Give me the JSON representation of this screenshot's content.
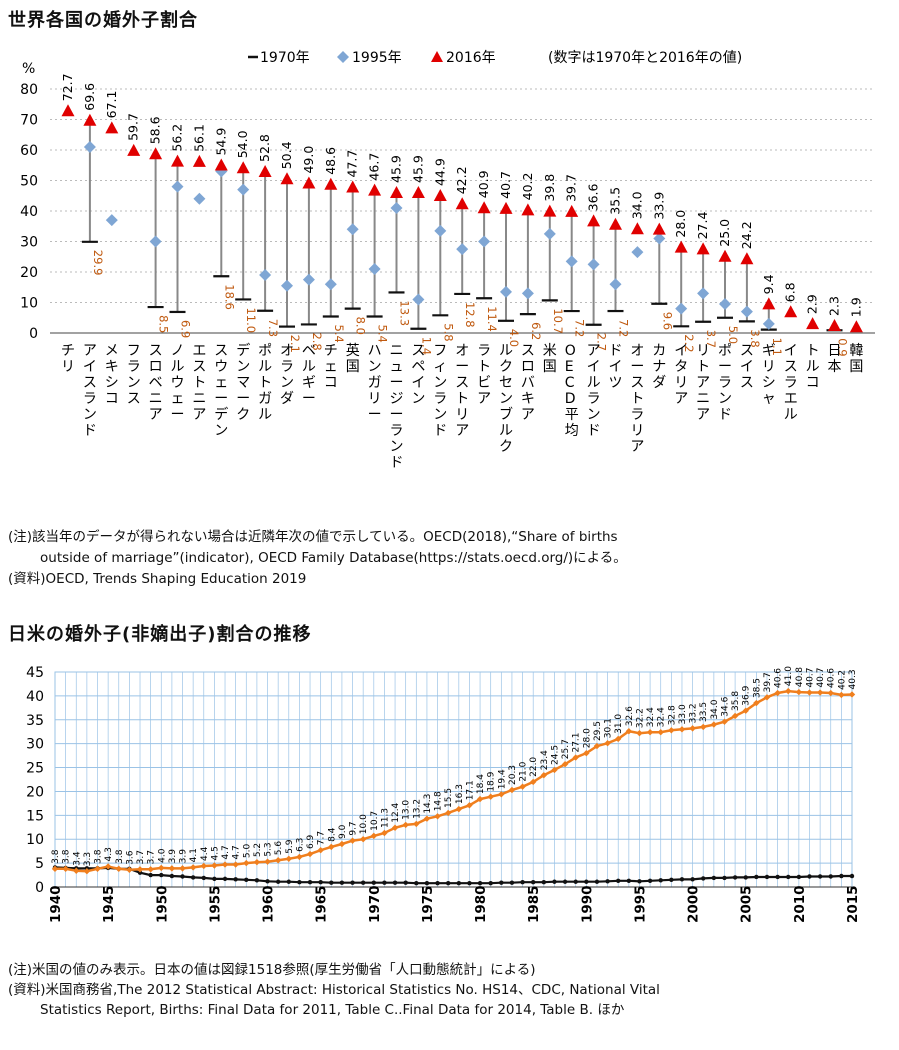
{
  "title1": "世界各国の婚外子割合",
  "title2": "日米の婚外子(非嫡出子)割合の推移",
  "legend": {
    "s1970": "1970年",
    "s1995": "1995年",
    "s2016": "2016年",
    "note": "(数字は1970年と2016年の値)"
  },
  "notes": {
    "n1": "(注)該当年のデータが得られない場合は近隣年次の値で示している。OECD(2018),“Share of births",
    "n2": "outside of marriage”(indicator), OECD Family Database(https://stats.oecd.org/)による。",
    "n3": "(資料)OECD, Trends Shaping Education 2019",
    "n4": "(注)米国の値のみ表示。日本の値は図録1518参照(厚生労働省「人口動態統計」による)",
    "n5": "(資料)米国商務省,The 2012 Statistical Abstract: Historical Statistics No. HS14、CDC, National Vital",
    "n6": "Statistics Report, Births: Final Data for 2011, Table C..Final Data for 2014, Table B. ほか"
  },
  "colors": {
    "s1970": "#111111",
    "s1995": "#7fa6d4",
    "s2016": "#e00000",
    "label1970": "#c05a10",
    "orange": "#f07f1e",
    "grid": "#9bc3e6"
  },
  "chart_data": [
    {
      "type": "scatter",
      "title": "世界各国の婚外子割合",
      "ylabel": "%",
      "ylim": [
        0,
        80
      ],
      "yticks": [
        0,
        10,
        20,
        30,
        40,
        50,
        60,
        70,
        80
      ],
      "categories": [
        "チリ",
        "アイスランド",
        "メキシコ",
        "フランス",
        "スロベニア",
        "ノルウェー",
        "エストニア",
        "スウェーデン",
        "デンマーク",
        "ポルトガル",
        "オランダ",
        "ベルギー",
        "チェコ",
        "英国",
        "ハンガリー",
        "ニュージーランド",
        "スペイン",
        "フィンランド",
        "オーストリア",
        "ラトビア",
        "ルクセンブルク",
        "スロバキア",
        "米国",
        "OECD平均",
        "アイルランド",
        "ドイツ",
        "オーストラリア",
        "カナダ",
        "イタリア",
        "リトアニア",
        "ポーランド",
        "スイス",
        "ギリシャ",
        "イスラエル",
        "トルコ",
        "日本",
        "韓国"
      ],
      "series": [
        {
          "name": "1970年",
          "values": [
            null,
            29.9,
            null,
            null,
            8.5,
            6.9,
            null,
            18.6,
            11.0,
            7.3,
            2.1,
            2.8,
            5.4,
            8.0,
            5.4,
            13.3,
            1.4,
            5.8,
            12.8,
            11.4,
            4.0,
            6.2,
            10.7,
            7.2,
            2.7,
            7.2,
            null,
            9.6,
            2.2,
            3.7,
            5.0,
            3.8,
            1.1,
            null,
            null,
            0.9,
            null
          ]
        },
        {
          "name": "1995年",
          "values": [
            null,
            61.0,
            37.0,
            null,
            30.0,
            48.0,
            44.0,
            53.0,
            47.0,
            19.0,
            15.5,
            17.5,
            16.0,
            34.0,
            21.0,
            41.0,
            11.0,
            33.5,
            27.5,
            30.0,
            13.5,
            13.0,
            32.5,
            23.5,
            22.5,
            16.0,
            26.5,
            31.0,
            8.0,
            13.0,
            9.5,
            7.0,
            3.0,
            null,
            null,
            null,
            null
          ]
        },
        {
          "name": "2016年",
          "values": [
            72.7,
            69.6,
            67.1,
            59.7,
            58.6,
            56.2,
            56.1,
            54.9,
            54.0,
            52.8,
            50.4,
            49.0,
            48.6,
            47.7,
            46.7,
            45.9,
            45.9,
            44.9,
            42.2,
            40.9,
            40.7,
            40.2,
            39.8,
            39.7,
            36.6,
            35.5,
            34.0,
            33.9,
            28.0,
            27.4,
            25.0,
            24.2,
            9.4,
            6.8,
            2.9,
            2.3,
            1.9
          ]
        }
      ]
    },
    {
      "type": "line",
      "title": "日米の婚外子(非嫡出子)割合の推移",
      "ylim": [
        0,
        45
      ],
      "yticks": [
        0,
        5,
        10,
        15,
        20,
        25,
        30,
        35,
        40,
        45
      ],
      "xlim": [
        1940,
        2015
      ],
      "xticks": [
        1940,
        1945,
        1950,
        1955,
        1960,
        1965,
        1970,
        1975,
        1980,
        1985,
        1990,
        1995,
        2000,
        2005,
        2010,
        2015
      ],
      "x": [
        1940,
        1941,
        1942,
        1943,
        1944,
        1945,
        1946,
        1947,
        1948,
        1949,
        1950,
        1951,
        1952,
        1953,
        1954,
        1955,
        1956,
        1957,
        1958,
        1959,
        1960,
        1961,
        1962,
        1963,
        1964,
        1965,
        1966,
        1967,
        1968,
        1969,
        1970,
        1971,
        1972,
        1973,
        1974,
        1975,
        1976,
        1977,
        1978,
        1979,
        1980,
        1981,
        1982,
        1983,
        1984,
        1985,
        1986,
        1987,
        1988,
        1989,
        1990,
        1991,
        1992,
        1993,
        1994,
        1995,
        1996,
        1997,
        1998,
        1999,
        2000,
        2001,
        2002,
        2003,
        2004,
        2005,
        2006,
        2007,
        2008,
        2009,
        2010,
        2011,
        2012,
        2013,
        2014,
        2015
      ],
      "series": [
        {
          "name": "米国",
          "values": [
            3.8,
            3.8,
            3.4,
            3.3,
            3.8,
            4.3,
            3.8,
            3.6,
            3.7,
            3.7,
            4.0,
            3.9,
            3.9,
            4.1,
            4.4,
            4.5,
            4.7,
            4.7,
            5.0,
            5.2,
            5.3,
            5.6,
            5.9,
            6.3,
            6.9,
            7.7,
            8.4,
            9.0,
            9.7,
            10.0,
            10.7,
            11.3,
            12.4,
            13.0,
            13.2,
            14.3,
            14.8,
            15.5,
            16.3,
            17.1,
            18.4,
            18.9,
            19.4,
            20.3,
            21.0,
            22.0,
            23.4,
            24.5,
            25.7,
            27.1,
            28.0,
            29.5,
            30.1,
            31.0,
            32.6,
            32.2,
            32.4,
            32.4,
            32.8,
            33.0,
            33.2,
            33.5,
            34.0,
            34.6,
            35.8,
            36.9,
            38.5,
            39.7,
            40.6,
            41.0,
            40.8,
            40.7,
            40.7,
            40.6,
            40.2,
            40.3
          ]
        },
        {
          "name": "日本",
          "values": [
            4.1,
            4.0,
            3.9,
            3.9,
            3.9,
            4.0,
            3.8,
            3.8,
            3.0,
            2.5,
            2.5,
            2.3,
            2.2,
            2.0,
            1.9,
            1.7,
            1.7,
            1.6,
            1.5,
            1.4,
            1.2,
            1.1,
            1.1,
            1.0,
            1.0,
            1.0,
            0.9,
            0.9,
            0.9,
            0.9,
            0.9,
            0.9,
            0.9,
            0.9,
            0.8,
            0.8,
            0.8,
            0.8,
            0.8,
            0.8,
            0.8,
            0.8,
            0.9,
            0.9,
            1.0,
            1.0,
            1.0,
            1.1,
            1.1,
            1.1,
            1.1,
            1.1,
            1.2,
            1.3,
            1.3,
            1.2,
            1.3,
            1.4,
            1.5,
            1.6,
            1.6,
            1.8,
            1.9,
            1.9,
            2.0,
            2.0,
            2.1,
            2.1,
            2.1,
            2.1,
            2.1,
            2.2,
            2.2,
            2.2,
            2.3,
            2.3
          ]
        }
      ]
    }
  ]
}
